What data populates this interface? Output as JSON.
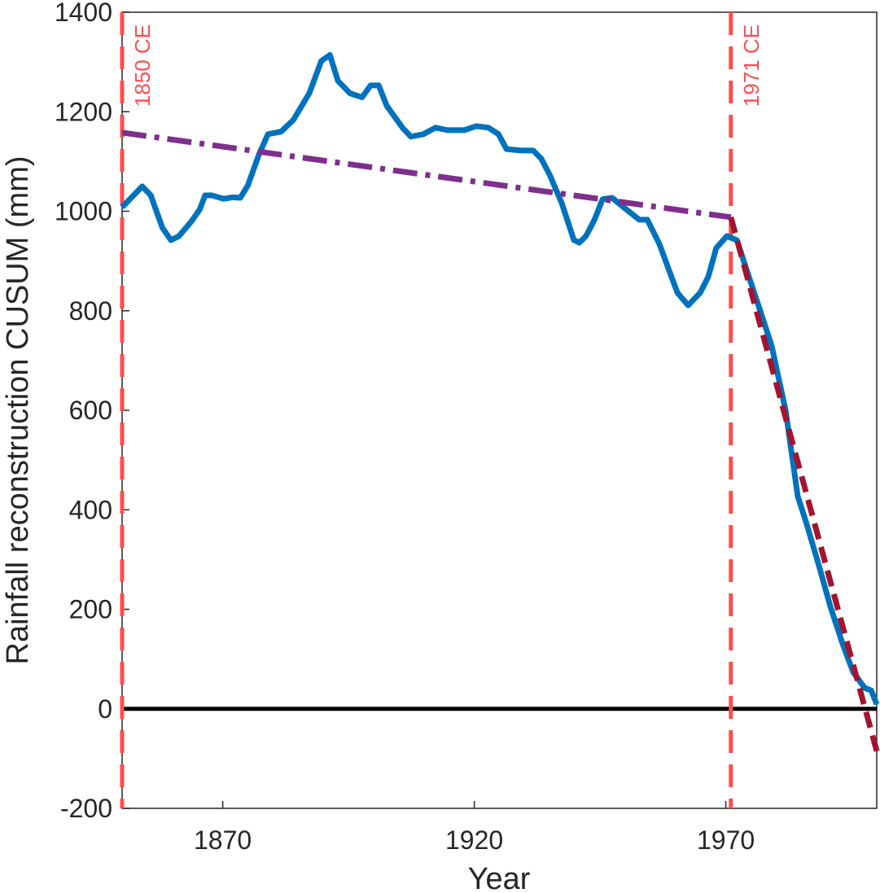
{
  "chart_data": {
    "type": "line",
    "xlabel": "Year",
    "ylabel": "Rainfall reconstruction CUSUM (mm)",
    "xlim": [
      1850,
      2000
    ],
    "ylim": [
      -200,
      1400
    ],
    "xticks": [
      1870,
      1920,
      1970
    ],
    "yticks": [
      -200,
      0,
      200,
      400,
      600,
      800,
      1000,
      1200,
      1400
    ],
    "x": [
      1850,
      1854,
      1855.7,
      1858,
      1859.7,
      1861.3,
      1863.8,
      1865.4,
      1866.5,
      1867.8,
      1870.2,
      1872,
      1873.5,
      1875,
      1877.2,
      1879,
      1881.6,
      1884,
      1887.2,
      1889.6,
      1891.3,
      1892.9,
      1895.3,
      1897.7,
      1899.4,
      1901,
      1902.6,
      1905.8,
      1907.4,
      1909.9,
      1912.3,
      1914.7,
      1918,
      1920.4,
      1922.8,
      1924.8,
      1926.4,
      1929.3,
      1931.7,
      1933.3,
      1935,
      1937.4,
      1939.8,
      1940.9,
      1942.2,
      1943.9,
      1945.5,
      1947.4,
      1950.3,
      1952.8,
      1954.4,
      1956.8,
      1959.2,
      1960.4,
      1962.5,
      1964.9,
      1966.5,
      1968.1,
      1970.2,
      1972.2,
      1974.6,
      1977,
      1979.1,
      1981.9,
      1984.3,
      1985.9,
      1988.3,
      1990.8,
      1993.2,
      1995.3,
      1997.6,
      1998.9,
      2000
    ],
    "series": [
      {
        "color": "#0072bd",
        "style": "solid",
        "values": [
          1008,
          1050,
          1032,
          967,
          942,
          950,
          980,
          1003,
          1032,
          1032,
          1025,
          1028,
          1027,
          1052,
          1114,
          1155,
          1160,
          1183,
          1237,
          1302,
          1314,
          1262,
          1237,
          1229,
          1253,
          1253,
          1212,
          1167,
          1150,
          1155,
          1168,
          1163,
          1163,
          1171,
          1168,
          1155,
          1125,
          1122,
          1122,
          1106,
          1073,
          1016,
          942,
          937,
          950,
          983,
          1024,
          1027,
          1003,
          983,
          983,
          934,
          868,
          836,
          811,
          836,
          868,
          926,
          950,
          942,
          868,
          795,
          730,
          599,
          427,
          377,
          295,
          205,
          131,
          74,
          42,
          37,
          9
        ]
      },
      {
        "color": "#7e2f8e",
        "style": "dashdot",
        "x": [
          1850,
          1971
        ],
        "values": [
          1158,
          988
        ]
      },
      {
        "color": "#a2142f",
        "style": "dashed",
        "x": [
          1971,
          2000
        ],
        "values": [
          988,
          -85
        ]
      }
    ],
    "hlines": [
      {
        "y": 0,
        "color": "#000000"
      }
    ],
    "vlines": [
      {
        "x": 1850,
        "label": "1850 CE",
        "color": "#ff4d4d"
      },
      {
        "x": 1971,
        "label": "1971 CE",
        "color": "#ff4d4d"
      }
    ]
  }
}
